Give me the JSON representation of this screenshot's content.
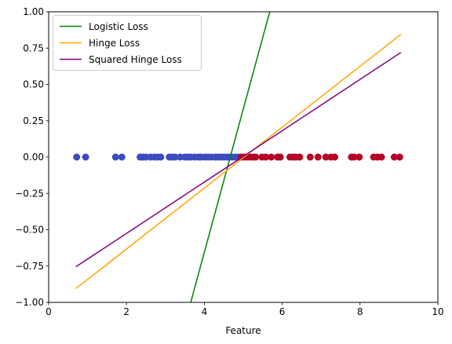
{
  "chart_data": {
    "type": "scatter",
    "title": "",
    "xlabel": "Feature",
    "ylabel": "",
    "xlim": [
      0,
      10
    ],
    "ylim": [
      -1,
      1
    ],
    "xticks": [
      "0",
      "2",
      "4",
      "6",
      "8",
      "10"
    ],
    "yticks": [
      "-1.00",
      "-0.75",
      "-0.50",
      "-0.25",
      "0.00",
      "0.25",
      "0.50",
      "0.75",
      "1.00"
    ],
    "grid": false,
    "legend_position": "top-left",
    "series": [
      {
        "name": "Logistic Loss",
        "kind": "line",
        "color": "#008000",
        "x": [
          3.65,
          5.68
        ],
        "y": [
          -1.0,
          1.0
        ]
      },
      {
        "name": "Hinge Loss",
        "kind": "line",
        "color": "#ffa500",
        "x": [
          0.7,
          9.05
        ],
        "y": [
          -0.905,
          0.845
        ]
      },
      {
        "name": "Squared Hinge Loss",
        "kind": "line",
        "color": "#800080",
        "x": [
          0.7,
          9.05
        ],
        "y": [
          -0.755,
          0.72
        ]
      }
    ],
    "points": {
      "y": 0,
      "class_a": {
        "color": "#3b4cc0",
        "x": [
          0.72,
          0.95,
          1.72,
          1.88,
          2.35,
          2.42,
          2.5,
          2.62,
          2.72,
          2.8,
          2.88,
          3.1,
          3.18,
          3.25,
          3.38,
          3.5,
          3.58,
          3.65,
          3.75,
          3.85,
          3.92,
          4.02,
          4.1,
          4.18,
          4.28,
          4.35,
          4.42,
          4.5,
          4.58,
          4.65,
          4.72,
          4.8,
          4.88
        ]
      },
      "class_b": {
        "color": "#b40426",
        "x": [
          4.95,
          5.02,
          5.1,
          5.18,
          5.25,
          5.32,
          5.48,
          5.58,
          5.72,
          5.88,
          5.95,
          6.2,
          6.28,
          6.35,
          6.45,
          6.72,
          6.92,
          7.12,
          7.25,
          7.35,
          7.78,
          7.85,
          7.98,
          8.35,
          8.45,
          8.55,
          8.88,
          9.02
        ]
      }
    }
  }
}
